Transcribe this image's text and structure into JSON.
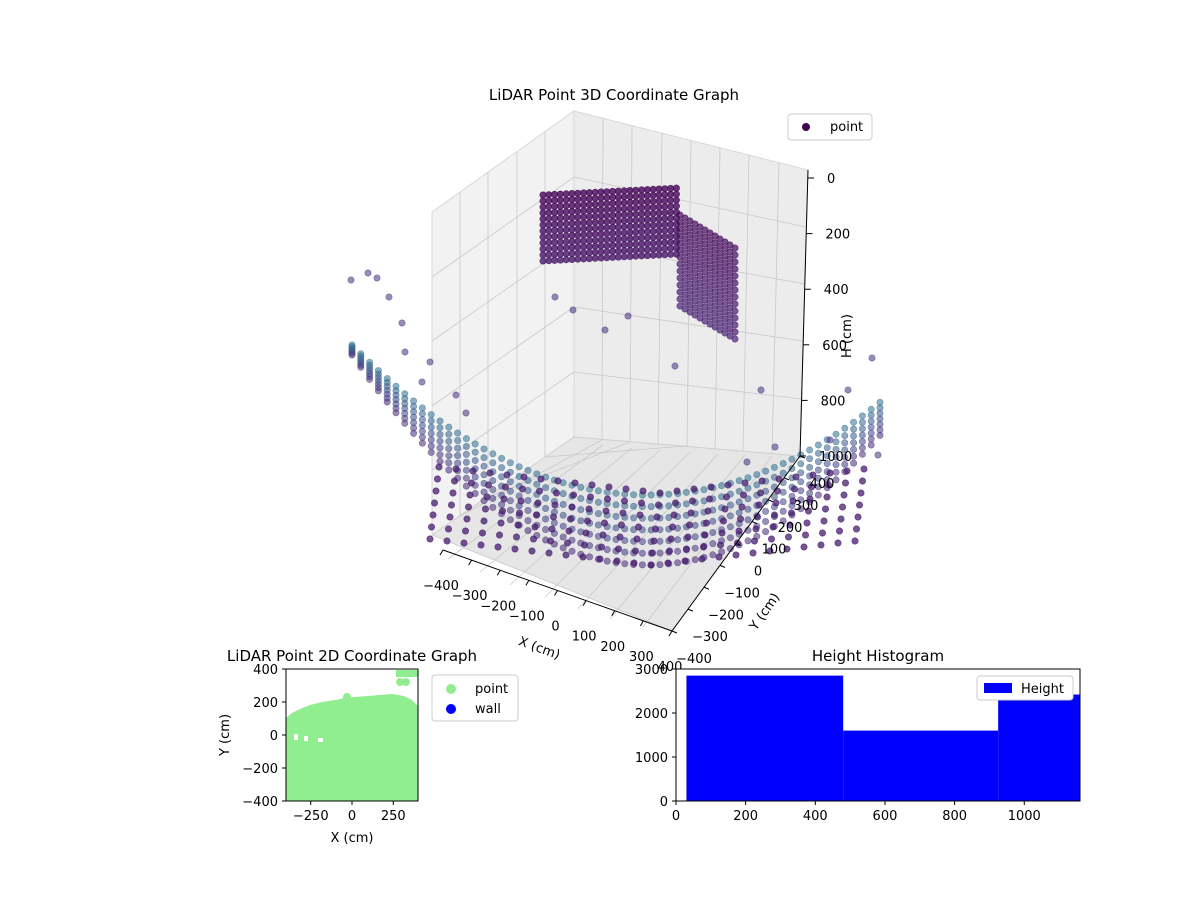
{
  "chart_data": [
    {
      "id": "plot3d",
      "type": "scatter",
      "title": "LiDAR Point 3D Coordinate Graph",
      "xlabel": "X (cm)",
      "ylabel": "Y (cm)",
      "zlabel": "H (cm)",
      "xlim": [
        -400,
        400
      ],
      "ylim": [
        -400,
        400
      ],
      "zlim": [
        0,
        1000
      ],
      "z_inverted": true,
      "x_ticks": [
        -400,
        -300,
        -200,
        -100,
        0,
        100,
        200,
        300,
        400
      ],
      "y_ticks": [
        -400,
        -300,
        -200,
        -100,
        0,
        100,
        200,
        300,
        400
      ],
      "z_ticks": [
        0,
        200,
        400,
        600,
        800,
        1000
      ],
      "grid": true,
      "legend_position": "top-right",
      "legend": [
        {
          "label": "point",
          "color": "#440154"
        }
      ],
      "colormap": "viridis",
      "series": [
        {
          "name": "point",
          "description_groups": [
            {
              "group": "ceiling",
              "x": [
                -180,
                180
              ],
              "y": [
                -300,
                300
              ],
              "h": [
                0,
                80
              ]
            },
            {
              "group": "wall",
              "x": [
                180,
                330
              ],
              "y": [
                -300,
                300
              ],
              "h": [
                0,
                400
              ]
            },
            {
              "group": "floor",
              "x": [
                -400,
                400
              ],
              "y": [
                -400,
                400
              ],
              "h": [
                850,
                1000
              ]
            }
          ]
        }
      ]
    },
    {
      "id": "plot2d",
      "type": "scatter",
      "title": "LiDAR Point 2D Coordinate Graph",
      "xlabel": "X (cm)",
      "ylabel": "Y (cm)",
      "xlim": [
        -400,
        400
      ],
      "ylim": [
        -400,
        400
      ],
      "x_ticks": [
        -250,
        0,
        250
      ],
      "y_ticks": [
        -400,
        -200,
        0,
        200,
        400
      ],
      "legend_position": "outside-right",
      "legend": [
        {
          "label": "point",
          "color": "#90ee90"
        },
        {
          "label": "wall",
          "color": "#0000ff"
        }
      ],
      "series": [
        {
          "name": "point",
          "color": "#90ee90",
          "coverage": {
            "x": [
              -400,
              400
            ],
            "y": [
              -400,
              240
            ]
          }
        },
        {
          "name": "wall",
          "color": "#0000ff",
          "values": []
        }
      ]
    },
    {
      "id": "hist",
      "type": "bar",
      "title": "Height Histogram",
      "xlabel": "",
      "ylabel": "",
      "xlim": [
        0,
        1160
      ],
      "ylim": [
        0,
        3000
      ],
      "x_ticks": [
        0,
        200,
        400,
        600,
        800,
        1000
      ],
      "y_ticks": [
        0,
        1000,
        2000,
        3000
      ],
      "legend_position": "top-right",
      "legend": [
        {
          "label": "Height",
          "color": "#0000ff"
        }
      ],
      "series": [
        {
          "name": "Height",
          "color": "#0000ff",
          "bins": [
            {
              "start": 30,
              "end": 480,
              "count": 2850
            },
            {
              "start": 480,
              "end": 925,
              "count": 1600
            },
            {
              "start": 925,
              "end": 1160,
              "count": 2420
            }
          ]
        }
      ]
    }
  ]
}
